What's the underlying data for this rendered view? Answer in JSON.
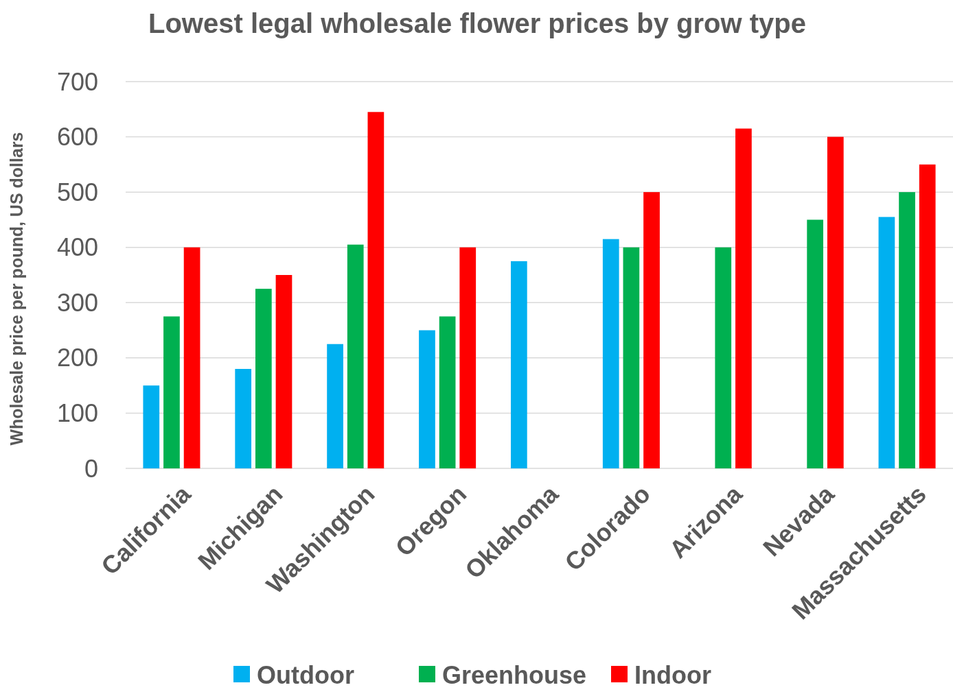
{
  "chart_data": {
    "type": "bar",
    "title": "Lowest legal wholesale flower prices by grow type",
    "ylabel": "Wholesale price per pound, US dollars",
    "categories": [
      "California",
      "Michigan",
      "Washington",
      "Oregon",
      "Oklahoma",
      "Colorado",
      "Arizona",
      "Nevada",
      "Massachusetts"
    ],
    "series": [
      {
        "name": "Outdoor",
        "color": "#00b0f0",
        "values": [
          150,
          180,
          225,
          250,
          375,
          415,
          null,
          null,
          455
        ]
      },
      {
        "name": "Greenhouse",
        "color": "#00b050",
        "values": [
          275,
          325,
          405,
          275,
          null,
          400,
          400,
          450,
          500
        ]
      },
      {
        "name": "Indoor",
        "color": "#ff0000",
        "values": [
          400,
          350,
          645,
          400,
          null,
          500,
          615,
          600,
          550
        ]
      }
    ],
    "ylim": [
      0,
      700
    ],
    "yticks": [
      0,
      100,
      200,
      300,
      400,
      500,
      600,
      700
    ],
    "grid": "y",
    "legend": "bottom"
  }
}
